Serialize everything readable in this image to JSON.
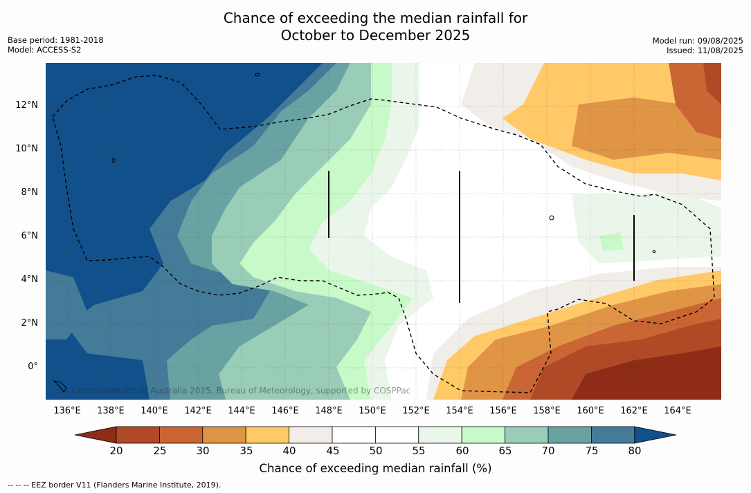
{
  "title": {
    "line1": "Chance of exceeding the median rainfall for",
    "line2": "October to December 2025"
  },
  "meta": {
    "base_period": "Base period: 1981-2018",
    "model": "Model: ACCESS-S2",
    "model_run": "Model run: 09/08/2025",
    "issued": "Issued: 11/08/2025"
  },
  "map": {
    "copyright": "© Commonwealth of Australia 2025, Bureau of Meteorology, supported by COSPPac",
    "lat_labels": [
      "12°N",
      "10°N",
      "8°N",
      "6°N",
      "4°N",
      "2°N",
      "0°"
    ],
    "lon_labels": [
      "136°E",
      "138°E",
      "140°E",
      "142°E",
      "144°E",
      "146°E",
      "148°E",
      "150°E",
      "152°E",
      "154°E",
      "156°E",
      "158°E",
      "160°E",
      "162°E",
      "164°E"
    ]
  },
  "colorbar": {
    "ticks": [
      "20",
      "25",
      "30",
      "35",
      "40",
      "45",
      "50",
      "55",
      "60",
      "65",
      "70",
      "75",
      "80"
    ],
    "colors": [
      "#8e2c17",
      "#b04a26",
      "#c96633",
      "#e09446",
      "#fec966",
      "#f1ede8",
      "#ffffff",
      "#ffffff",
      "#ebf6ea",
      "#c8f9c8",
      "#99cdb7",
      "#69a2a2",
      "#437b98",
      "#12508b"
    ],
    "label": "Chance of exceeding median rainfall (%)"
  },
  "footnote": "--  --  -- EEZ border V11 (Flanders Marine Institute, 2019)."
}
